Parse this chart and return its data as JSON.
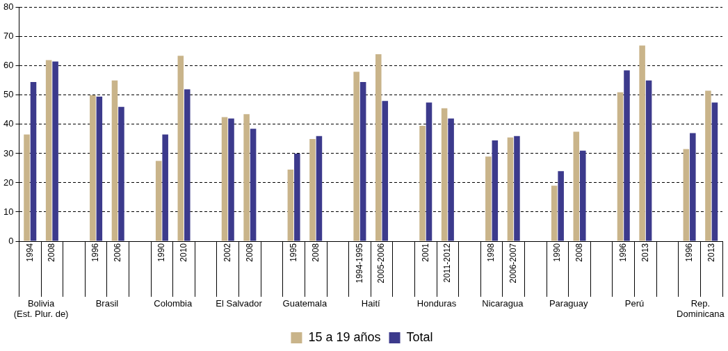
{
  "chart_data": {
    "type": "bar",
    "categories": [
      "1994",
      "2008",
      null,
      "1996",
      "2006",
      null,
      "1990",
      "2010",
      null,
      "2002",
      "2008",
      null,
      "1995",
      "2008",
      null,
      "1994-1995",
      "2005-2006",
      null,
      "2001",
      "2011-2012",
      null,
      "1998",
      "2006-2007",
      null,
      "1990",
      "2008",
      null,
      "1996",
      "2013",
      null,
      "1996",
      "2013"
    ],
    "series": [
      {
        "name": "15 a 19 años",
        "color": "#c9b48a",
        "values": [
          36.5,
          62,
          null,
          50,
          55,
          null,
          27.5,
          63.5,
          null,
          42.5,
          43.5,
          null,
          24.5,
          35,
          null,
          58,
          64,
          null,
          39.5,
          45.5,
          null,
          29,
          35.5,
          null,
          19,
          37.5,
          null,
          51,
          67,
          null,
          31.5,
          51.5
        ]
      },
      {
        "name": "Total",
        "color": "#3c3a8c",
        "values": [
          54.5,
          61.5,
          null,
          49.5,
          46,
          null,
          36.5,
          52,
          null,
          42,
          38.5,
          null,
          30,
          36,
          null,
          54.5,
          48,
          null,
          47.5,
          42,
          null,
          34.5,
          36,
          null,
          24,
          31,
          null,
          58.5,
          55,
          null,
          37,
          47.5
        ]
      }
    ],
    "annotations": [
      "Bolivia\n(Est. Plur. de)",
      "Brasil",
      "Colombia",
      "El Salvador",
      "Guatemala",
      "Haití",
      "Honduras",
      "Nicaragua",
      "Paraguay",
      "Perú",
      "Rep.\nDominicana"
    ],
    "ylim": [
      0,
      80
    ],
    "yticks": [
      0,
      10,
      20,
      30,
      40,
      50,
      60,
      70,
      80
    ],
    "grid": "y",
    "legend": "bottom"
  }
}
